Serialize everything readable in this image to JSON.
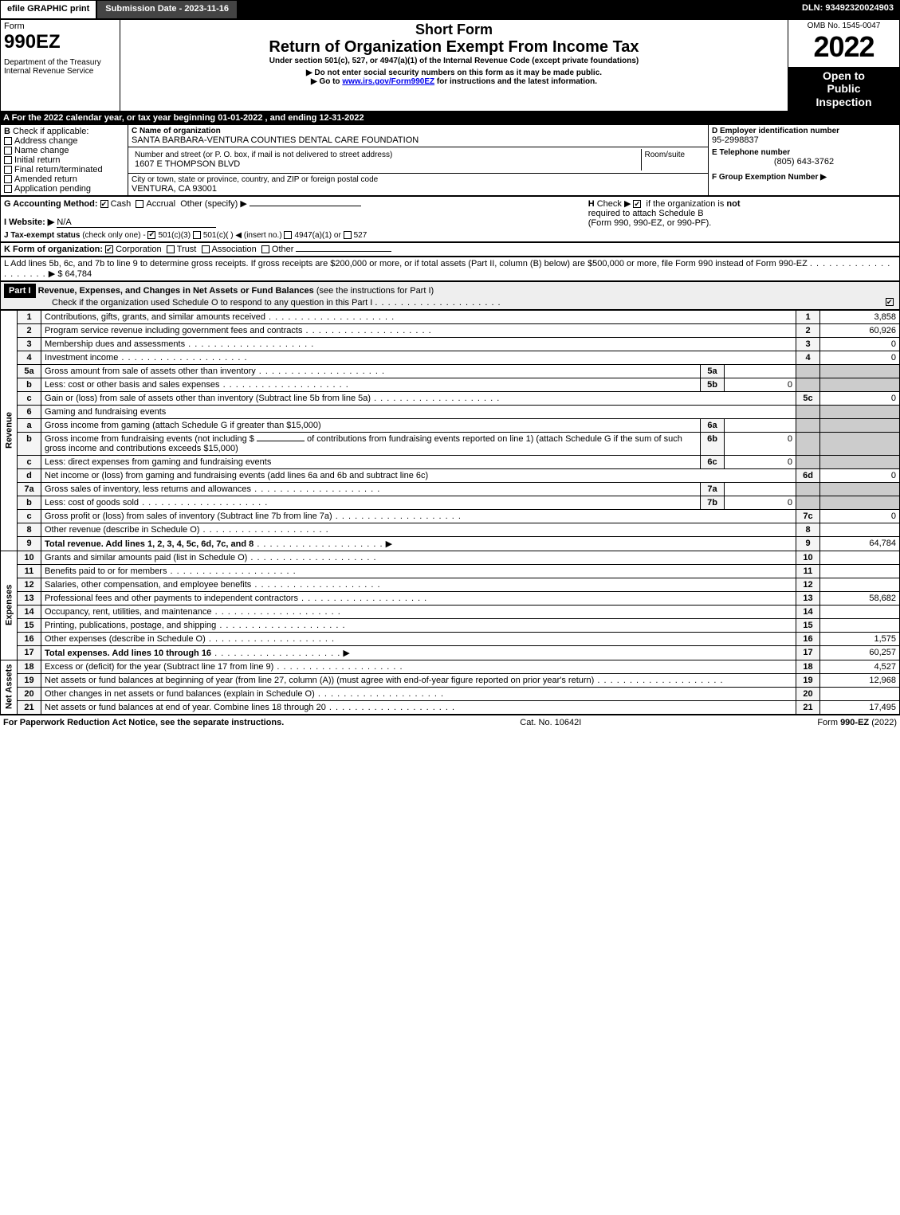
{
  "topbar": {
    "efile": "efile GRAPHIC print",
    "submission": "Submission Date - 2023-11-16",
    "dln": "DLN: 93492320024903"
  },
  "header": {
    "form_word": "Form",
    "form_no": "990EZ",
    "dept": "Department of the Treasury\nInternal Revenue Service",
    "short_form": "Short Form",
    "title": "Return of Organization Exempt From Income Tax",
    "under": "Under section 501(c), 527, or 4947(a)(1) of the Internal Revenue Code (except private foundations)",
    "no_ssn": "▶ Do not enter social security numbers on this form as it may be made public.",
    "goto_pre": "▶ Go to ",
    "goto_link": "www.irs.gov/Form990EZ",
    "goto_post": " for instructions and the latest information.",
    "omb": "OMB No. 1545-0047",
    "year": "2022",
    "public": "Open to\nPublic\nInspection"
  },
  "A": {
    "text": "A  For the 2022 calendar year, or tax year beginning 01-01-2022 , and ending 12-31-2022"
  },
  "B": {
    "label": "B",
    "check_if": "Check if applicable:",
    "items": [
      "Address change",
      "Name change",
      "Initial return",
      "Final return/terminated",
      "Amended return",
      "Application pending"
    ]
  },
  "C": {
    "label_name": "C Name of organization",
    "name": "SANTA BARBARA-VENTURA COUNTIES DENTAL CARE FOUNDATION",
    "label_street": "Number and street (or P. O. box, if mail is not delivered to street address)",
    "street": "1607 E THOMPSON BLVD",
    "room_label": "Room/suite",
    "label_city": "City or town, state or province, country, and ZIP or foreign postal code",
    "city": "VENTURA, CA  93001"
  },
  "D": {
    "label": "D Employer identification number",
    "value": "95-2998837"
  },
  "E": {
    "label": "E Telephone number",
    "value": "(805) 643-3762"
  },
  "F": {
    "label": "F Group Exemption Number  ▶"
  },
  "G": {
    "label": "G Accounting Method:",
    "cash": "Cash",
    "accrual": "Accrual",
    "other": "Other (specify) ▶"
  },
  "H": {
    "label": "H",
    "text1": "Check ▶ ",
    "text2": " if the organization is ",
    "not": "not",
    "text3": " required to attach Schedule B",
    "text4": "(Form 990, 990-EZ, or 990-PF)."
  },
  "I": {
    "label": "I Website: ▶",
    "value": "N/A"
  },
  "J": {
    "label": "J Tax-exempt status",
    "sub": "(check only one) -",
    "c3": "501(c)(3)",
    "c": "501(c)( )",
    "insert": "◀ (insert no.)",
    "a1": "4947(a)(1) or",
    "s527": "527"
  },
  "K": {
    "label": "K Form of organization:",
    "corp": "Corporation",
    "trust": "Trust",
    "assoc": "Association",
    "other": "Other"
  },
  "L": {
    "text": "L Add lines 5b, 6c, and 7b to line 9 to determine gross receipts. If gross receipts are $200,000 or more, or if total assets (Part II, column (B) below) are $500,000 or more, file Form 990 instead of Form 990-EZ",
    "amount": "$ 64,784"
  },
  "part1": {
    "hdr": "Part I",
    "title": "Revenue, Expenses, and Changes in Net Assets or Fund Balances",
    "title_paren": "(see the instructions for Part I)",
    "check": "Check if the organization used Schedule O to respond to any question in this Part I"
  },
  "rev_label": "Revenue",
  "exp_label": "Expenses",
  "net_label": "Net Assets",
  "lines": {
    "l1": {
      "n": "1",
      "t": "Contributions, gifts, grants, and similar amounts received",
      "num": "1",
      "v": "3,858"
    },
    "l2": {
      "n": "2",
      "t": "Program service revenue including government fees and contracts",
      "num": "2",
      "v": "60,926"
    },
    "l3": {
      "n": "3",
      "t": "Membership dues and assessments",
      "num": "3",
      "v": "0"
    },
    "l4": {
      "n": "4",
      "t": "Investment income",
      "num": "4",
      "v": "0"
    },
    "l5a": {
      "n": "5a",
      "t": "Gross amount from sale of assets other than inventory",
      "box": "5a",
      "boxv": ""
    },
    "l5b": {
      "n": "b",
      "t": "Less: cost or other basis and sales expenses",
      "box": "5b",
      "boxv": "0"
    },
    "l5c": {
      "n": "c",
      "t": "Gain or (loss) from sale of assets other than inventory (Subtract line 5b from line 5a)",
      "num": "5c",
      "v": "0"
    },
    "l6": {
      "n": "6",
      "t": "Gaming and fundraising events"
    },
    "l6a": {
      "n": "a",
      "t": "Gross income from gaming (attach Schedule G if greater than $15,000)",
      "box": "6a",
      "boxv": ""
    },
    "l6b": {
      "n": "b",
      "t1": "Gross income from fundraising events (not including $",
      "t2": "of contributions from fundraising events reported on line 1) (attach Schedule G if the sum of such gross income and contributions exceeds $15,000)",
      "box": "6b",
      "boxv": "0"
    },
    "l6c": {
      "n": "c",
      "t": "Less: direct expenses from gaming and fundraising events",
      "box": "6c",
      "boxv": "0"
    },
    "l6d": {
      "n": "d",
      "t": "Net income or (loss) from gaming and fundraising events (add lines 6a and 6b and subtract line 6c)",
      "num": "6d",
      "v": "0"
    },
    "l7a": {
      "n": "7a",
      "t": "Gross sales of inventory, less returns and allowances",
      "box": "7a",
      "boxv": ""
    },
    "l7b": {
      "n": "b",
      "t": "Less: cost of goods sold",
      "box": "7b",
      "boxv": "0"
    },
    "l7c": {
      "n": "c",
      "t": "Gross profit or (loss) from sales of inventory (Subtract line 7b from line 7a)",
      "num": "7c",
      "v": "0"
    },
    "l8": {
      "n": "8",
      "t": "Other revenue (describe in Schedule O)",
      "num": "8",
      "v": ""
    },
    "l9": {
      "n": "9",
      "t": "Total revenue. Add lines 1, 2, 3, 4, 5c, 6d, 7c, and 8",
      "num": "9",
      "v": "64,784",
      "bold": true,
      "arrow": true
    },
    "l10": {
      "n": "10",
      "t": "Grants and similar amounts paid (list in Schedule O)",
      "num": "10",
      "v": ""
    },
    "l11": {
      "n": "11",
      "t": "Benefits paid to or for members",
      "num": "11",
      "v": ""
    },
    "l12": {
      "n": "12",
      "t": "Salaries, other compensation, and employee benefits",
      "num": "12",
      "v": ""
    },
    "l13": {
      "n": "13",
      "t": "Professional fees and other payments to independent contractors",
      "num": "13",
      "v": "58,682"
    },
    "l14": {
      "n": "14",
      "t": "Occupancy, rent, utilities, and maintenance",
      "num": "14",
      "v": ""
    },
    "l15": {
      "n": "15",
      "t": "Printing, publications, postage, and shipping",
      "num": "15",
      "v": ""
    },
    "l16": {
      "n": "16",
      "t": "Other expenses (describe in Schedule O)",
      "num": "16",
      "v": "1,575"
    },
    "l17": {
      "n": "17",
      "t": "Total expenses. Add lines 10 through 16",
      "num": "17",
      "v": "60,257",
      "bold": true,
      "arrow": true
    },
    "l18": {
      "n": "18",
      "t": "Excess or (deficit) for the year (Subtract line 17 from line 9)",
      "num": "18",
      "v": "4,527"
    },
    "l19": {
      "n": "19",
      "t": "Net assets or fund balances at beginning of year (from line 27, column (A)) (must agree with end-of-year figure reported on prior year's return)",
      "num": "19",
      "v": "12,968"
    },
    "l20": {
      "n": "20",
      "t": "Other changes in net assets or fund balances (explain in Schedule O)",
      "num": "20",
      "v": ""
    },
    "l21": {
      "n": "21",
      "t": "Net assets or fund balances at end of year. Combine lines 18 through 20",
      "num": "21",
      "v": "17,495"
    }
  },
  "footer": {
    "left": "For Paperwork Reduction Act Notice, see the separate instructions.",
    "mid": "Cat. No. 10642I",
    "right_pre": "Form ",
    "right_form": "990-EZ",
    "right_yr": " (2022)"
  }
}
